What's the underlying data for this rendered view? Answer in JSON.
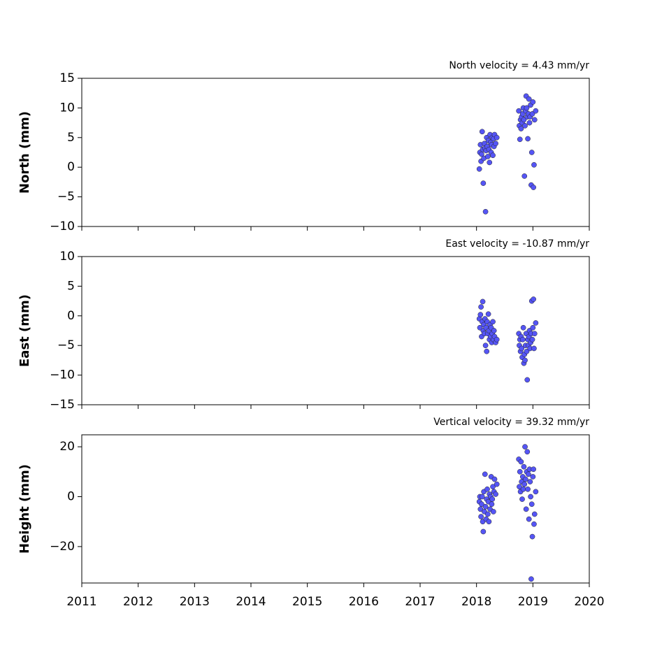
{
  "chart_data": [
    {
      "type": "scatter",
      "title": "North velocity = 4.43 mm/yr",
      "ylabel": "North (mm)",
      "color": "#5555f5",
      "ylim": [
        -10,
        15
      ],
      "yticks": [
        {
          "value": -10,
          "label": "−10"
        },
        {
          "value": -5,
          "label": "−5"
        },
        0,
        5,
        10,
        15
      ],
      "x": [
        2018.05,
        2018.06,
        2018.07,
        2018.08,
        2018.09,
        2018.1,
        2018.11,
        2018.12,
        2018.13,
        2018.14,
        2018.15,
        2018.16,
        2018.17,
        2018.18,
        2018.19,
        2018.2,
        2018.21,
        2018.22,
        2018.23,
        2018.24,
        2018.25,
        2018.26,
        2018.27,
        2018.28,
        2018.29,
        2018.3,
        2018.31,
        2018.32,
        2018.34,
        2018.36,
        2018.75,
        2018.76,
        2018.77,
        2018.78,
        2018.79,
        2018.8,
        2018.81,
        2018.82,
        2018.83,
        2018.84,
        2018.85,
        2018.86,
        2018.87,
        2018.88,
        2018.89,
        2018.9,
        2018.91,
        2018.92,
        2018.93,
        2018.94,
        2018.95,
        2018.96,
        2018.97,
        2018.98,
        2018.99,
        2019.0,
        2019.01,
        2019.02,
        2019.03,
        2019.05
      ],
      "values": [
        -0.3,
        2.5,
        3.8,
        1.0,
        2.2,
        6.0,
        3.0,
        -2.7,
        1.5,
        4.0,
        3.2,
        -7.5,
        2.8,
        5.0,
        3.5,
        1.8,
        4.5,
        3.0,
        0.8,
        5.5,
        4.2,
        2.5,
        3.8,
        5.0,
        2.0,
        4.8,
        3.5,
        5.5,
        4.0,
        5.0,
        9.5,
        7.0,
        4.7,
        8.0,
        6.5,
        8.5,
        7.5,
        9.0,
        10.0,
        8.0,
        -1.5,
        7.0,
        9.5,
        12.0,
        10.0,
        8.5,
        4.8,
        9.0,
        11.5,
        7.5,
        8.5,
        10.5,
        -3.0,
        2.5,
        9.0,
        11.0,
        -3.4,
        0.4,
        8.0,
        9.5
      ]
    },
    {
      "type": "scatter",
      "title": "East velocity = -10.87 mm/yr",
      "ylabel": "East (mm)",
      "color": "#5555f5",
      "ylim": [
        -15,
        10
      ],
      "yticks": [
        {
          "value": -15,
          "label": "−15"
        },
        {
          "value": -10,
          "label": "−10"
        },
        {
          "value": -5,
          "label": "−5"
        },
        0,
        5,
        10
      ],
      "x": [
        2018.05,
        2018.06,
        2018.07,
        2018.08,
        2018.09,
        2018.1,
        2018.11,
        2018.12,
        2018.13,
        2018.14,
        2018.15,
        2018.16,
        2018.17,
        2018.18,
        2018.19,
        2018.2,
        2018.21,
        2018.22,
        2018.23,
        2018.24,
        2018.25,
        2018.26,
        2018.27,
        2018.28,
        2018.29,
        2018.3,
        2018.31,
        2018.32,
        2018.34,
        2018.36,
        2018.75,
        2018.76,
        2018.77,
        2018.78,
        2018.79,
        2018.8,
        2018.81,
        2018.82,
        2018.83,
        2018.84,
        2018.85,
        2018.86,
        2018.87,
        2018.88,
        2018.89,
        2018.9,
        2018.91,
        2018.92,
        2018.93,
        2018.94,
        2018.95,
        2018.96,
        2018.97,
        2018.98,
        2018.99,
        2019.0,
        2019.01,
        2019.02,
        2019.03,
        2019.05
      ],
      "values": [
        -0.5,
        -2,
        0.2,
        1.5,
        -3.5,
        -1,
        2.4,
        -2.5,
        -1.5,
        -3,
        -0.5,
        -5,
        -2,
        -6,
        -1,
        -3,
        0.3,
        -2.5,
        -4,
        -1.5,
        -3.5,
        -2,
        -4.5,
        -3,
        -1,
        -4,
        -2.5,
        -3.5,
        -4.5,
        -4,
        -3,
        -5,
        -4,
        -6,
        -3.5,
        -5.5,
        -7,
        -4,
        -2,
        -8,
        -6.5,
        -7.5,
        -5,
        -3,
        -6,
        -10.8,
        -4,
        -5,
        -3.5,
        -2.5,
        -5.5,
        -4.5,
        -3,
        2.5,
        -4,
        -2,
        2.8,
        -5.5,
        -3,
        -1.2
      ]
    },
    {
      "type": "scatter",
      "title": "Vertical velocity = 39.32 mm/yr",
      "ylabel": "Height (mm)",
      "color": "#5555f5",
      "ylim": [
        -34.6,
        24.8
      ],
      "yticks": [
        {
          "value": -20,
          "label": "−20"
        },
        0,
        20
      ],
      "xlim": [
        2011,
        2020
      ],
      "xticks": [
        2011,
        2012,
        2013,
        2014,
        2015,
        2016,
        2017,
        2018,
        2019,
        2020
      ],
      "x": [
        2018.05,
        2018.06,
        2018.07,
        2018.08,
        2018.09,
        2018.1,
        2018.11,
        2018.12,
        2018.13,
        2018.14,
        2018.15,
        2018.16,
        2018.17,
        2018.18,
        2018.19,
        2018.2,
        2018.21,
        2018.22,
        2018.23,
        2018.24,
        2018.25,
        2018.26,
        2018.27,
        2018.28,
        2018.29,
        2018.3,
        2018.31,
        2018.32,
        2018.34,
        2018.36,
        2018.75,
        2018.76,
        2018.77,
        2018.78,
        2018.79,
        2018.8,
        2018.81,
        2018.82,
        2018.83,
        2018.84,
        2018.85,
        2018.86,
        2018.87,
        2018.88,
        2018.89,
        2018.9,
        2018.91,
        2018.92,
        2018.93,
        2018.94,
        2018.95,
        2018.96,
        2018.97,
        2018.98,
        2018.99,
        2019.0,
        2019.01,
        2019.02,
        2019.03,
        2019.05
      ],
      "values": [
        -2,
        0,
        -5,
        -8,
        -3,
        0,
        -10,
        -14,
        2,
        -6,
        9,
        -4,
        -9,
        -1,
        3,
        -7,
        -2,
        -10,
        1,
        -5,
        0,
        8,
        -3,
        -1,
        4,
        -6,
        2,
        7,
        1,
        5,
        15,
        4,
        10,
        2,
        14,
        6,
        -1,
        8,
        3,
        12,
        5,
        20,
        7,
        -5,
        10,
        18,
        3,
        9,
        -9,
        11,
        6,
        0,
        -33,
        -3,
        -16,
        8,
        11,
        -11,
        -7,
        2
      ]
    }
  ]
}
